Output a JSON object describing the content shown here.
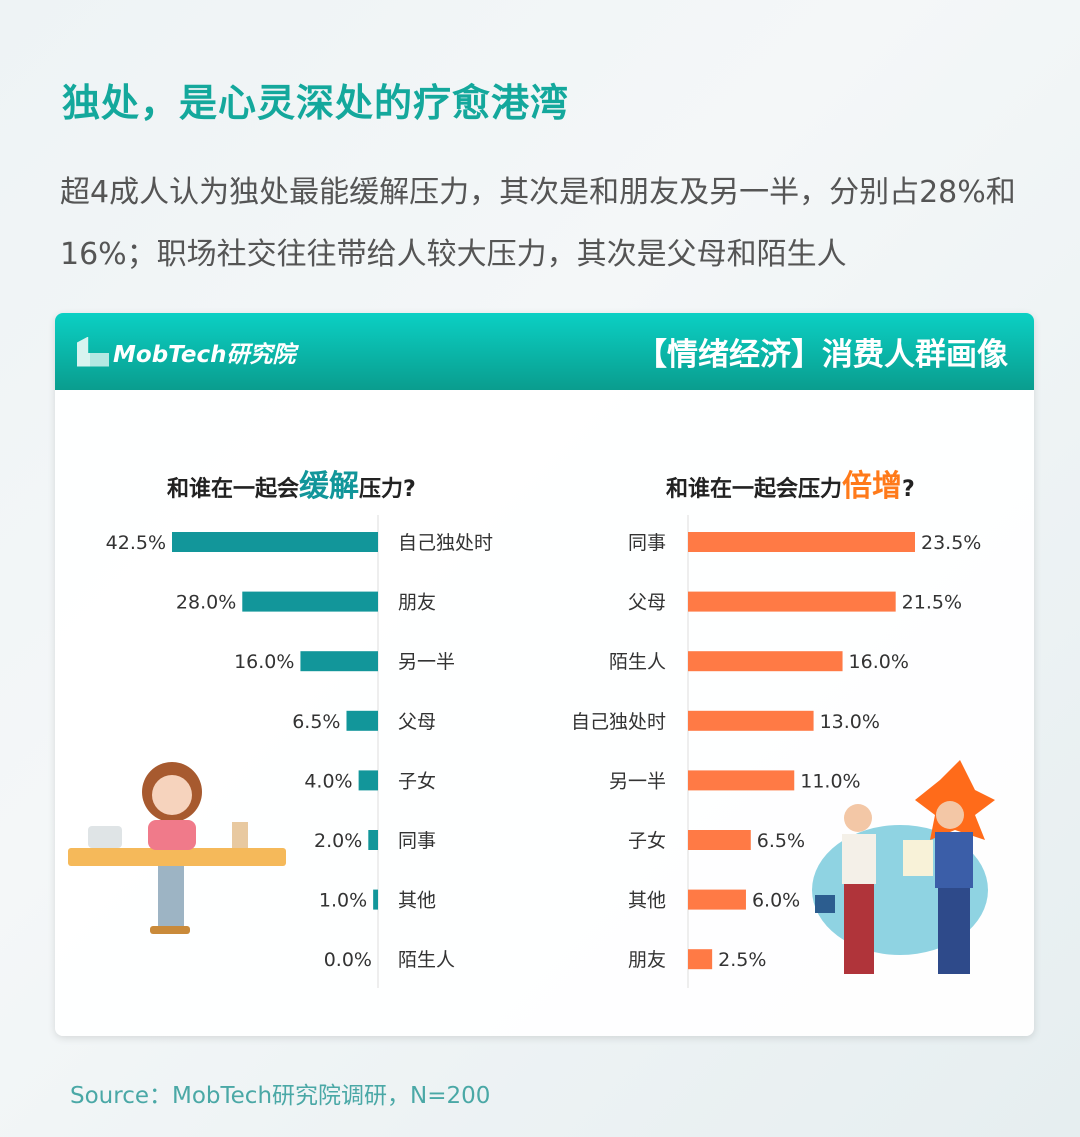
{
  "header": {
    "title": "独处，是心灵深处的疗愈港湾",
    "subtitle": "超4成人认为独处最能缓解压力，其次是和朋友及另一半，分别占28%和16%；职场社交往往带给人较大压力，其次是父母和陌生人"
  },
  "card": {
    "logo": "MobTech研究院",
    "banner": "【情绪经济】消费人群画像"
  },
  "colors": {
    "teal": "#12969a",
    "orange": "#ff7a45",
    "title": "#14a89c"
  },
  "chart_data": [
    {
      "type": "bar",
      "orientation": "horizontal",
      "title_pre": "和谁在一起会",
      "title_hl": "缓解",
      "title_post": "压力?",
      "categories": [
        "自己独处时",
        "朋友",
        "另一半",
        "父母",
        "子女",
        "同事",
        "其他",
        "陌生人"
      ],
      "values": [
        42.5,
        28.0,
        16.0,
        6.5,
        4.0,
        2.0,
        1.0,
        0.0
      ],
      "unit": "%",
      "color": "#12969a"
    },
    {
      "type": "bar",
      "orientation": "horizontal",
      "title_pre": "和谁在一起会压力",
      "title_hl": "倍增",
      "title_post": "?",
      "categories": [
        "同事",
        "父母",
        "陌生人",
        "自己独处时",
        "另一半",
        "子女",
        "其他",
        "朋友"
      ],
      "values": [
        23.5,
        21.5,
        16.0,
        13.0,
        11.0,
        6.5,
        6.0,
        2.5
      ],
      "unit": "%",
      "color": "#ff7a45"
    }
  ],
  "footer": {
    "source": "Source：MobTech研究院调研，N=200"
  }
}
